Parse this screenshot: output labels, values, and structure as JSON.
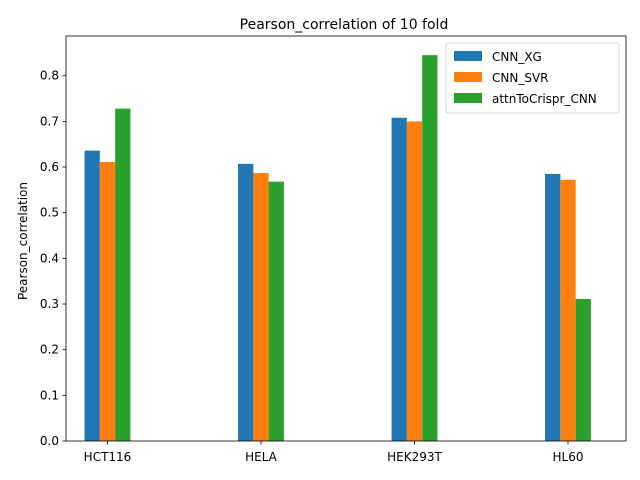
{
  "chart_data": {
    "type": "bar",
    "title": "Pearson_correlation of 10 fold",
    "xlabel": "",
    "ylabel": "Pearson_correlation",
    "categories": [
      "HCT116",
      "HELA",
      "HEK293T",
      "HL60"
    ],
    "series": [
      {
        "name": "CNN_XG",
        "color": "#1f77b4",
        "values": [
          0.636,
          0.607,
          0.708,
          0.585
        ]
      },
      {
        "name": "CNN_SVR",
        "color": "#ff7f0e",
        "values": [
          0.611,
          0.587,
          0.7,
          0.572
        ]
      },
      {
        "name": "attnToCrispr_CNN",
        "color": "#2ca02c",
        "values": [
          0.728,
          0.568,
          0.845,
          0.311
        ]
      }
    ],
    "ylim": [
      0,
      0.887
    ],
    "yticks": [
      0.0,
      0.1,
      0.2,
      0.3,
      0.4,
      0.5,
      0.6,
      0.7,
      0.8
    ],
    "ytick_labels": [
      "0.0",
      "0.1",
      "0.2",
      "0.3",
      "0.4",
      "0.5",
      "0.6",
      "0.7",
      "0.8"
    ],
    "grid": false,
    "legend_position": "top-right"
  }
}
